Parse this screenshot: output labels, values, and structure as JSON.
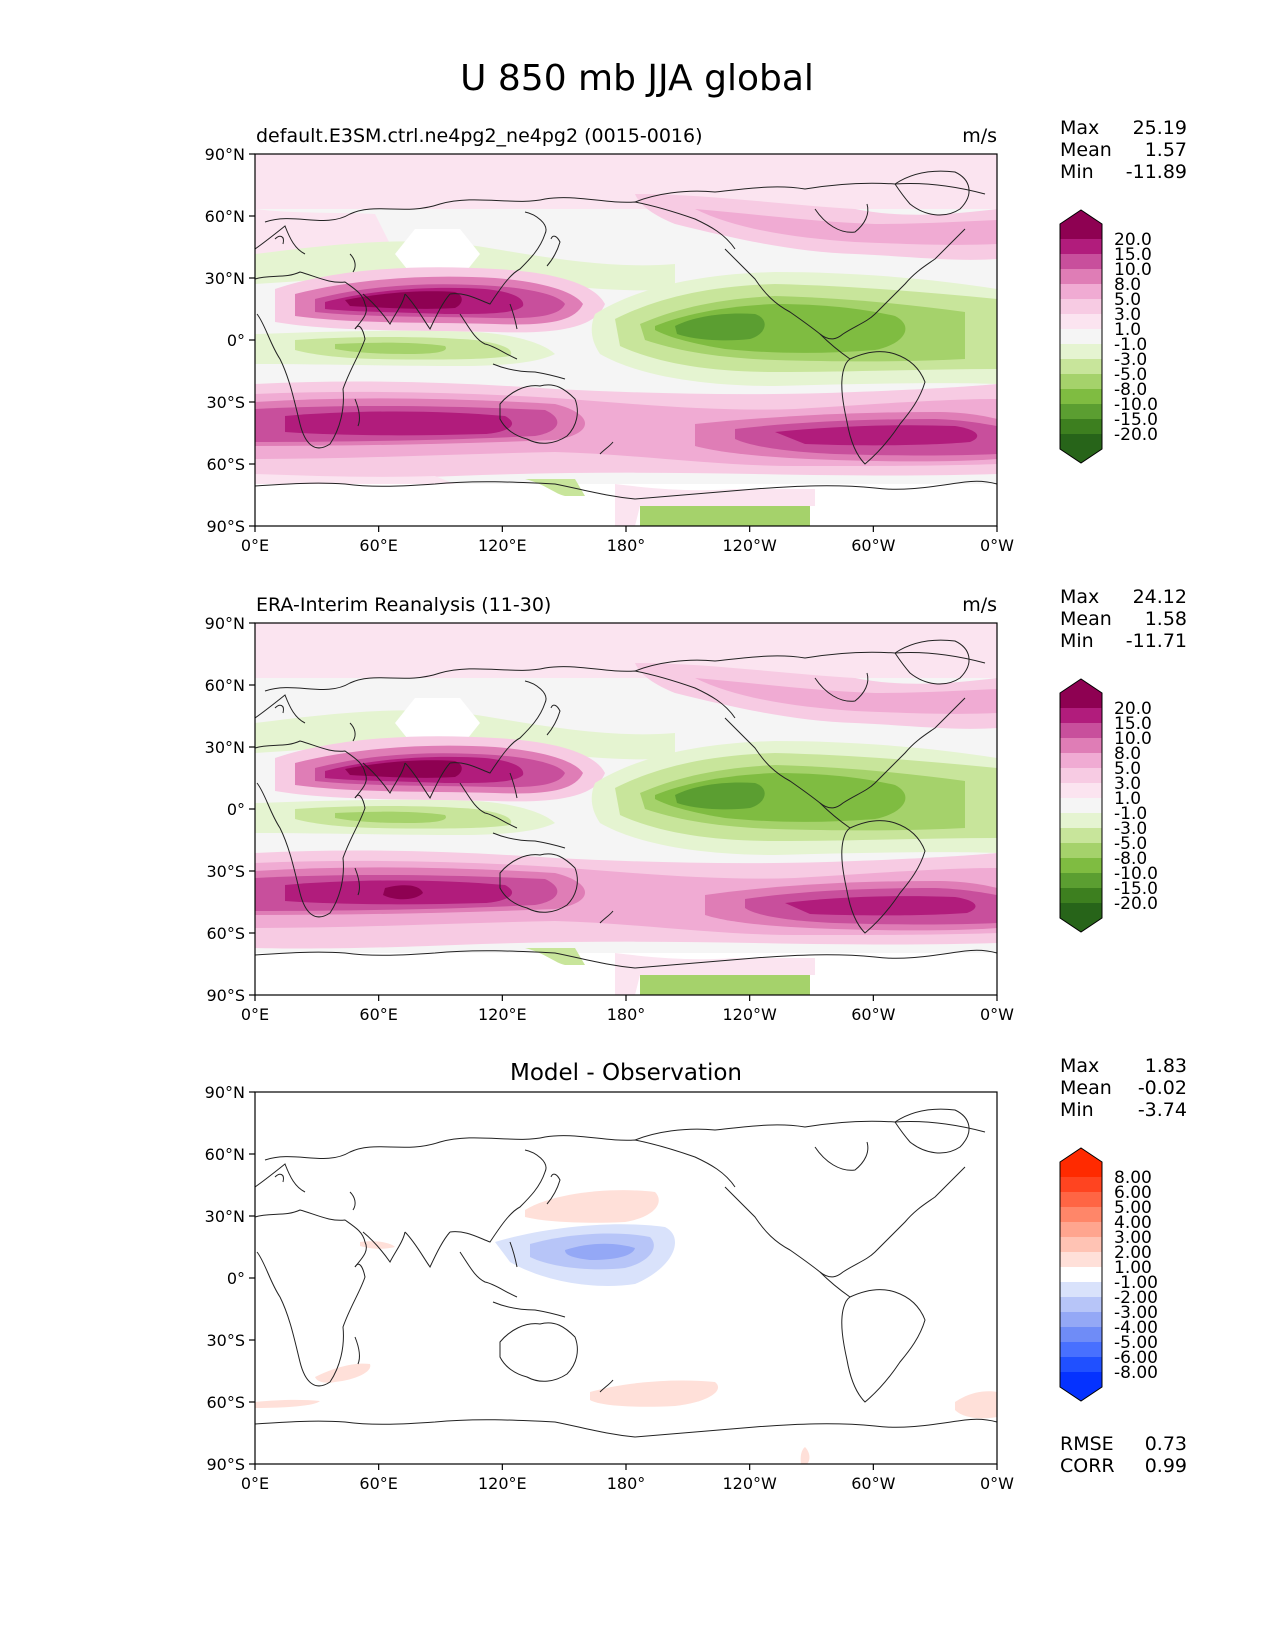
{
  "title": "U 850 mb JJA global",
  "lat_ticks": [
    "90°N",
    "60°N",
    "30°N",
    "0°",
    "30°S",
    "60°S",
    "90°S"
  ],
  "lon_ticks": [
    "0°E",
    "60°E",
    "120°E",
    "180°",
    "120°W",
    "60°W",
    "0°W"
  ],
  "colors": {
    "field": [
      "#276419",
      "#3d7f1f",
      "#5b9e31",
      "#7fbc41",
      "#a5d26b",
      "#c8e59b",
      "#e5f4d1",
      "#f5f5f5",
      "#fbe4f0",
      "#f7cbe3",
      "#f0abd3",
      "#df7db6",
      "#c84f9c",
      "#b11c7c",
      "#8e0152"
    ],
    "diff": [
      "#0532ff",
      "#2050ff",
      "#4870ff",
      "#6f8cf7",
      "#94a8f6",
      "#b7c5f8",
      "#d9e2fb",
      "#ffffff",
      "#ffe0d9",
      "#ffc3b4",
      "#ffa58f",
      "#ff8669",
      "#ff6544",
      "#ff4420",
      "#ff2a00"
    ]
  },
  "panels": [
    {
      "title_left": "default.E3SM.ctrl.ne4pg2_ne4pg2 (0015-0016)",
      "title_center": "",
      "units": "m/s",
      "stats": [
        {
          "label": "Max",
          "value": "25.19"
        },
        {
          "label": "Mean",
          "value": "1.57"
        },
        {
          "label": "Min",
          "value": "-11.89"
        }
      ],
      "colorbar_labels": [
        "20.0",
        "15.0",
        "10.0",
        "8.0",
        "5.0",
        "3.0",
        "1.0",
        "-1.0",
        "-3.0",
        "-5.0",
        "-8.0",
        "-10.0",
        "-15.0",
        "-20.0"
      ],
      "extra_stats": []
    },
    {
      "title_left": "ERA-Interim Reanalysis (11-30)",
      "title_center": "",
      "units": "m/s",
      "stats": [
        {
          "label": "Max",
          "value": "24.12"
        },
        {
          "label": "Mean",
          "value": "1.58"
        },
        {
          "label": "Min",
          "value": "-11.71"
        }
      ],
      "colorbar_labels": [
        "20.0",
        "15.0",
        "10.0",
        "8.0",
        "5.0",
        "3.0",
        "1.0",
        "-1.0",
        "-3.0",
        "-5.0",
        "-8.0",
        "-10.0",
        "-15.0",
        "-20.0"
      ],
      "extra_stats": []
    },
    {
      "title_left": "",
      "title_center": "Model - Observation",
      "units": "",
      "stats": [
        {
          "label": "Max",
          "value": "1.83"
        },
        {
          "label": "Mean",
          "value": "-0.02"
        },
        {
          "label": "Min",
          "value": "-3.74"
        }
      ],
      "colorbar_labels": [
        "8.00",
        "6.00",
        "5.00",
        "4.00",
        "3.00",
        "2.00",
        "1.00",
        "-1.00",
        "-2.00",
        "-3.00",
        "-4.00",
        "-5.00",
        "-6.00",
        "-8.00"
      ],
      "extra_stats": [
        {
          "label": "RMSE",
          "value": "0.73"
        },
        {
          "label": "CORR",
          "value": "0.99"
        }
      ]
    }
  ]
}
